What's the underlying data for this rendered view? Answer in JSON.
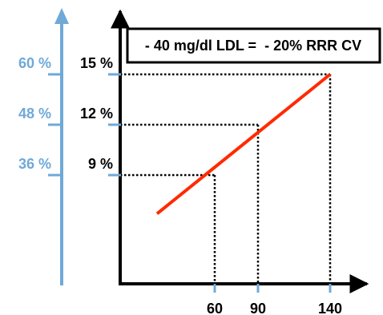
{
  "chart_data": {
    "type": "line",
    "annotation": "- 40 mg/dl LDL =  - 20% RRR CV",
    "x_ticks": [
      "60",
      "90",
      "140"
    ],
    "y_ticks": [
      "9 %",
      "12 %",
      "15 %"
    ],
    "secondary_y_ticks": [
      "36 %",
      "48 %",
      "60 %"
    ],
    "series": [
      {
        "x": [
          60,
          90,
          140
        ],
        "y": [
          9,
          12,
          15
        ]
      }
    ],
    "line_extent_x": [
      20,
      140
    ],
    "line_extent_y": [
      6.7,
      15
    ],
    "colors": {
      "line": "#ff2a00",
      "secondary_axis": "#6fa9d8",
      "axis": "#000000"
    },
    "grid": false
  }
}
